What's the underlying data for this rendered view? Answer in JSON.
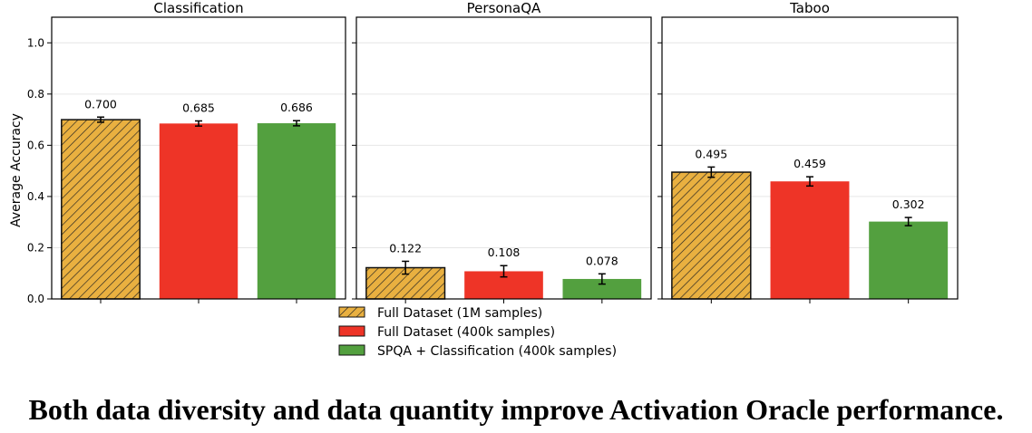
{
  "chart_data": {
    "type": "bar",
    "ylabel": "Average Accuracy",
    "ylim": [
      0,
      1.1
    ],
    "yticks": [
      0.0,
      0.2,
      0.4,
      0.6,
      0.8,
      1.0
    ],
    "ytick_labels": [
      "0.0",
      "0.2",
      "0.4",
      "0.6",
      "0.8",
      "1.0"
    ],
    "grid": "horizontal",
    "legend_position": "bottom-center",
    "series": [
      {
        "name": "Full Dataset (1M samples)",
        "color": "#e9b040",
        "hatch": true
      },
      {
        "name": "Full Dataset (400k samples)",
        "color": "#ee3427",
        "hatch": false
      },
      {
        "name": "SPQA + Classification (400k samples)",
        "color": "#53a03f",
        "hatch": false
      }
    ],
    "panels": [
      {
        "title": "Classification",
        "values": [
          0.7,
          0.685,
          0.686
        ],
        "labels": [
          "0.700",
          "0.685",
          "0.686"
        ],
        "errors": [
          0.01,
          0.01,
          0.01
        ]
      },
      {
        "title": "PersonaQA",
        "values": [
          0.122,
          0.108,
          0.078
        ],
        "labels": [
          "0.122",
          "0.108",
          "0.078"
        ],
        "errors": [
          0.025,
          0.022,
          0.02
        ]
      },
      {
        "title": "Taboo",
        "values": [
          0.495,
          0.459,
          0.302
        ],
        "labels": [
          "0.495",
          "0.459",
          "0.302"
        ],
        "errors": [
          0.02,
          0.018,
          0.016
        ]
      }
    ]
  },
  "caption": "Both data diversity and data quantity improve Activation Oracle performance."
}
